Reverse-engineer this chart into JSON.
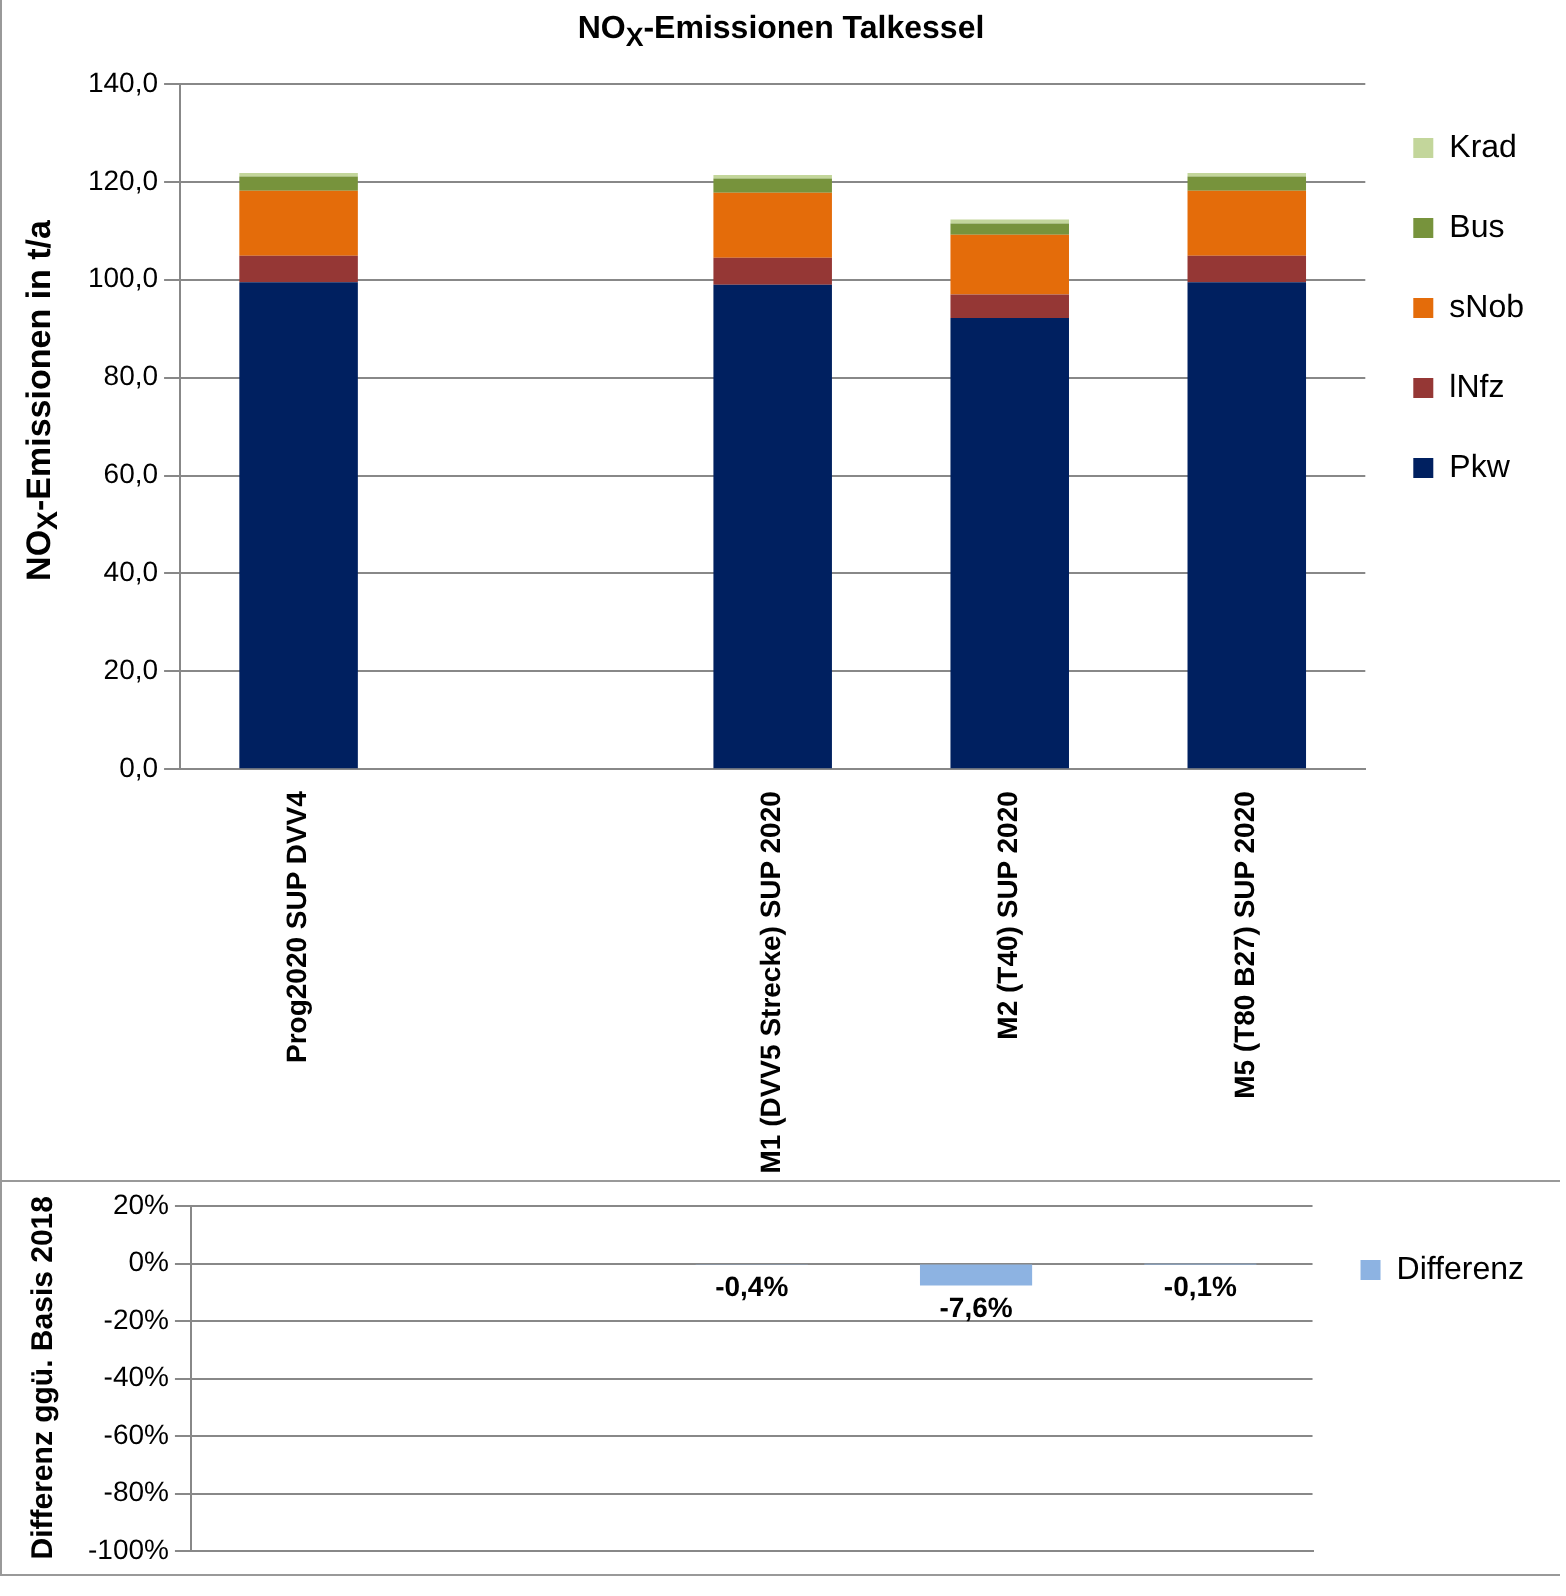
{
  "chart_data": [
    {
      "type": "bar",
      "title": "NO$_{X}$-Emissionen Talkessel",
      "ylabel": "NO$_{X}$-Emissionen in t/a",
      "categories": [
        "Prog2020 SUP DVV4",
        null,
        "M1 (DVV5 Strecke) SUP 2020",
        "M2 (T40) SUP 2020",
        "M5 (T80 B27) SUP 2020"
      ],
      "series": [
        {
          "name": "Pkw",
          "color": "#002060",
          "values": [
            99.5,
            null,
            99.0,
            92.2,
            99.5
          ]
        },
        {
          "name": "lNfz",
          "color": "#953735",
          "values": [
            5.4,
            null,
            5.5,
            4.8,
            5.4
          ]
        },
        {
          "name": "sNob",
          "color": "#e46c0a",
          "values": [
            13.3,
            null,
            13.3,
            12.2,
            13.3
          ]
        },
        {
          "name": "Bus",
          "color": "#77933c",
          "values": [
            2.9,
            null,
            2.9,
            2.3,
            2.9
          ]
        },
        {
          "name": "Krad",
          "color": "#c3d69b",
          "values": [
            0.7,
            null,
            0.7,
            0.8,
            0.7
          ]
        }
      ],
      "stacked": true,
      "ylim": [
        0,
        140
      ],
      "yticks": [
        {
          "value": 0,
          "label": "0,0"
        },
        {
          "value": 20,
          "label": "20,0"
        },
        {
          "value": 40,
          "label": "40,0"
        },
        {
          "value": 60,
          "label": "60,0"
        },
        {
          "value": 80,
          "label": "80,0"
        },
        {
          "value": 100,
          "label": "100,0"
        },
        {
          "value": 120,
          "label": "120,0"
        },
        {
          "value": 140,
          "label": "140,0"
        }
      ],
      "grid": "y",
      "legend": "top right"
    },
    {
      "type": "bar",
      "ylabel": "Differenz ggü. Basis 2018",
      "categories": [
        null,
        null,
        null,
        null,
        null
      ],
      "series": [
        {
          "name": "Differenz",
          "color": "#8db3e2",
          "values": [
            null,
            null,
            -0.4,
            -7.6,
            -0.1
          ],
          "value_labels": [
            null,
            null,
            "-0,4%",
            "-7,6%",
            "-0,1%"
          ]
        }
      ],
      "ylim": [
        -100,
        20
      ],
      "yticks": [
        {
          "value": -100,
          "label": "-100%"
        },
        {
          "value": -80,
          "label": "-80%"
        },
        {
          "value": -60,
          "label": "-60%"
        },
        {
          "value": -40,
          "label": "-40%"
        },
        {
          "value": -20,
          "label": "-20%"
        },
        {
          "value": 0,
          "label": "0%"
        },
        {
          "value": 20,
          "label": "20%"
        }
      ],
      "grid": "y",
      "legend": "top right",
      "tick_labels": "y"
    }
  ]
}
